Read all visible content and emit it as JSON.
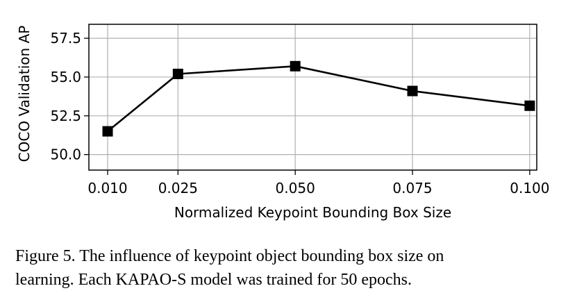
{
  "chart_data": {
    "type": "line",
    "x": [
      0.01,
      0.025,
      0.05,
      0.075,
      0.1
    ],
    "x_tick_labels": [
      "0.010",
      "0.025",
      "0.050",
      "0.075",
      "0.100"
    ],
    "series": [
      {
        "values": [
          51.5,
          55.2,
          55.7,
          54.1,
          53.15
        ],
        "color": "#000000",
        "marker": "square"
      }
    ],
    "y_ticks": [
      50.0,
      52.5,
      55.0,
      57.5
    ],
    "y_tick_labels": [
      "50.0",
      "52.5",
      "55.0",
      "57.5"
    ],
    "xlabel": "Normalized Keypoint Bounding Box Size",
    "ylabel": "COCO Validation AP",
    "xlim": [
      0.006,
      0.1015
    ],
    "ylim": [
      49.0,
      58.4
    ],
    "grid": true,
    "grid_color": "#b0b0b0"
  },
  "caption": {
    "line1": "Figure 5.  The influence of keypoint object bounding box size on",
    "line2": "learning. Each KAPAO-S model was trained for 50 epochs."
  }
}
